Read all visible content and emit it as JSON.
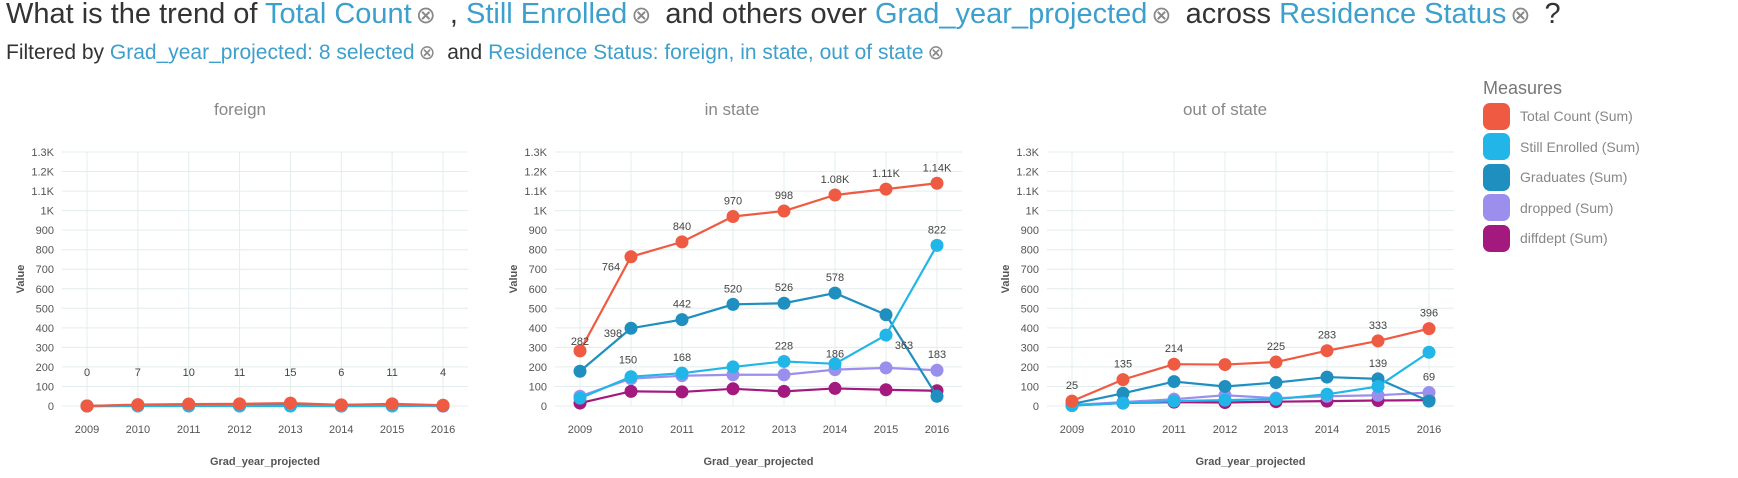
{
  "question": {
    "prefix": "What is the trend of",
    "measure1": "Total Count",
    "sep": ",",
    "measure2": "Still Enrolled",
    "mid": "and others over",
    "dimension": "Grad_year_projected",
    "across": "across",
    "split": "Residence Status",
    "end": "?"
  },
  "filters": {
    "prefix": "Filtered by",
    "filter1": "Grad_year_projected: 8 selected",
    "and": "and",
    "filter2": "Residence Status: foreign, in state, out of state"
  },
  "icons": {
    "remove": "close-circle-icon"
  },
  "legend": {
    "title": "Measures",
    "items": [
      {
        "label": "Total Count (Sum)",
        "color": "#ef5b42"
      },
      {
        "label": "Still Enrolled (Sum)",
        "color": "#22b5e8"
      },
      {
        "label": "Graduates (Sum)",
        "color": "#1f8fbf"
      },
      {
        "label": "dropped (Sum)",
        "color": "#9b8fee"
      },
      {
        "label": "diffdept (Sum)",
        "color": "#a3197e"
      }
    ]
  },
  "chart_data": [
    {
      "type": "line",
      "title": "foreign",
      "xlabel": "Grad_year_projected",
      "ylabel": "Value",
      "x": [
        "2009",
        "2010",
        "2011",
        "2012",
        "2013",
        "2014",
        "2015",
        "2016"
      ],
      "ylim": [
        0,
        1300
      ],
      "yticks": [
        "0",
        "100",
        "200",
        "300",
        "400",
        "500",
        "600",
        "700",
        "800",
        "900",
        "1K",
        "1.1K",
        "1.2K",
        "1.3K"
      ],
      "grid": true,
      "series": [
        {
          "name": "Total Count (Sum)",
          "color": "#ef5b42",
          "values": [
            0,
            7,
            10,
            11,
            15,
            6,
            11,
            4
          ]
        },
        {
          "name": "Still Enrolled (Sum)",
          "color": "#22b5e8",
          "values": [
            0,
            0,
            0,
            0,
            0,
            0,
            0,
            3
          ]
        },
        {
          "name": "Graduates (Sum)",
          "color": "#1f8fbf",
          "values": [
            0,
            5,
            8,
            9,
            12,
            5,
            8,
            1
          ]
        },
        {
          "name": "dropped (Sum)",
          "color": "#9b8fee",
          "values": [
            0,
            1,
            1,
            1,
            2,
            1,
            2,
            0
          ]
        },
        {
          "name": "diffdept (Sum)",
          "color": "#a3197e",
          "values": [
            0,
            1,
            1,
            1,
            1,
            0,
            1,
            0
          ]
        }
      ],
      "data_labels": [
        {
          "x": "2009",
          "text": "0"
        },
        {
          "x": "2010",
          "text": "7"
        },
        {
          "x": "2011",
          "text": "10"
        },
        {
          "x": "2012",
          "text": "11"
        },
        {
          "x": "2013",
          "text": "15"
        },
        {
          "x": "2014",
          "text": "6"
        },
        {
          "x": "2015",
          "text": "11"
        },
        {
          "x": "2016",
          "text": "4"
        }
      ]
    },
    {
      "type": "line",
      "title": "in state",
      "xlabel": "Grad_year_projected",
      "ylabel": "Value",
      "x": [
        "2009",
        "2010",
        "2011",
        "2012",
        "2013",
        "2014",
        "2015",
        "2016"
      ],
      "ylim": [
        0,
        1300
      ],
      "yticks": [
        "0",
        "100",
        "200",
        "300",
        "400",
        "500",
        "600",
        "700",
        "800",
        "900",
        "1K",
        "1.1K",
        "1.2K",
        "1.3K"
      ],
      "grid": true,
      "series": [
        {
          "name": "Total Count (Sum)",
          "color": "#ef5b42",
          "values": [
            282,
            764,
            840,
            970,
            998,
            1080,
            1110,
            1140
          ]
        },
        {
          "name": "Still Enrolled (Sum)",
          "color": "#22b5e8",
          "values": [
            40,
            150,
            168,
            200,
            228,
            216,
            363,
            822
          ]
        },
        {
          "name": "Graduates (Sum)",
          "color": "#1f8fbf",
          "values": [
            178,
            398,
            442,
            520,
            526,
            578,
            467,
            50
          ]
        },
        {
          "name": "dropped (Sum)",
          "color": "#9b8fee",
          "values": [
            50,
            140,
            155,
            160,
            160,
            186,
            195,
            183
          ]
        },
        {
          "name": "diffdept (Sum)",
          "color": "#a3197e",
          "values": [
            15,
            75,
            72,
            88,
            75,
            90,
            83,
            78
          ]
        }
      ],
      "data_labels": [
        {
          "x": "2009",
          "text": "282"
        },
        {
          "x": "2010",
          "text": "764"
        },
        {
          "x": "2011",
          "text": "840"
        },
        {
          "x": "2012",
          "text": "970"
        },
        {
          "x": "2013",
          "text": "998"
        },
        {
          "x": "2014",
          "text": "1.08K"
        },
        {
          "x": "2015",
          "text": "1.11K"
        },
        {
          "x": "2016",
          "text": "1.14K"
        },
        {
          "x": "2010",
          "text": "398"
        },
        {
          "x": "2011",
          "text": "442"
        },
        {
          "x": "2012",
          "text": "520"
        },
        {
          "x": "2013",
          "text": "526"
        },
        {
          "x": "2014",
          "text": "578"
        },
        {
          "x": "2016",
          "text": "822"
        },
        {
          "x": "2010",
          "text": "150"
        },
        {
          "x": "2011",
          "text": "168"
        },
        {
          "x": "2013",
          "text": "228"
        },
        {
          "x": "2014",
          "text": "186"
        },
        {
          "x": "2015",
          "text": "363"
        },
        {
          "x": "2016",
          "text": "183"
        }
      ]
    },
    {
      "type": "line",
      "title": "out of state",
      "xlabel": "Grad_year_projected",
      "ylabel": "Value",
      "x": [
        "2009",
        "2010",
        "2011",
        "2012",
        "2013",
        "2014",
        "2015",
        "2016"
      ],
      "ylim": [
        0,
        1300
      ],
      "yticks": [
        "0",
        "100",
        "200",
        "300",
        "400",
        "500",
        "600",
        "700",
        "800",
        "900",
        "1K",
        "1.1K",
        "1.2K",
        "1.3K"
      ],
      "grid": true,
      "series": [
        {
          "name": "Total Count (Sum)",
          "color": "#ef5b42",
          "values": [
            25,
            135,
            214,
            212,
            225,
            283,
            333,
            396
          ]
        },
        {
          "name": "Still Enrolled (Sum)",
          "color": "#22b5e8",
          "values": [
            2,
            15,
            25,
            30,
            35,
            60,
            100,
            275
          ]
        },
        {
          "name": "Graduates (Sum)",
          "color": "#1f8fbf",
          "values": [
            10,
            65,
            125,
            100,
            120,
            148,
            139,
            25
          ]
        },
        {
          "name": "dropped (Sum)",
          "color": "#9b8fee",
          "values": [
            5,
            20,
            35,
            55,
            40,
            50,
            55,
            69
          ]
        },
        {
          "name": "diffdept (Sum)",
          "color": "#a3197e",
          "values": [
            3,
            15,
            20,
            18,
            22,
            25,
            28,
            30
          ]
        }
      ],
      "data_labels": [
        {
          "x": "2009",
          "text": "25"
        },
        {
          "x": "2010",
          "text": "135"
        },
        {
          "x": "2011",
          "text": "214"
        },
        {
          "x": "2013",
          "text": "225"
        },
        {
          "x": "2014",
          "text": "283"
        },
        {
          "x": "2015",
          "text": "333"
        },
        {
          "x": "2016",
          "text": "396"
        },
        {
          "x": "2015",
          "text": "139"
        },
        {
          "x": "2016",
          "text": "69"
        }
      ]
    }
  ]
}
